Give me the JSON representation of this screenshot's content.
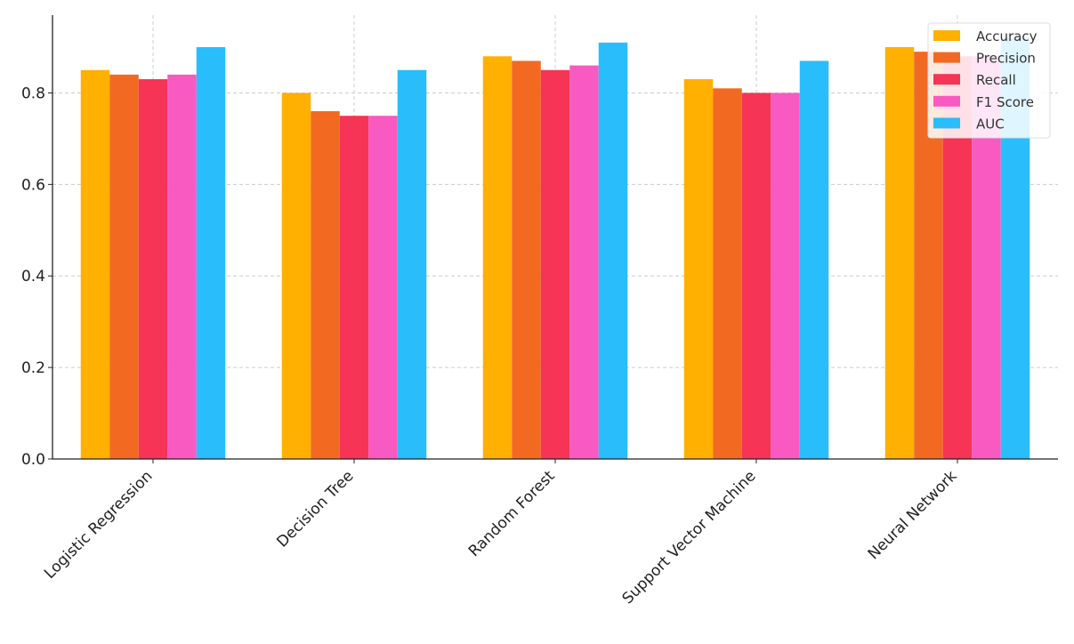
{
  "chart_data": {
    "type": "bar",
    "title": "",
    "xlabel": "",
    "ylabel": "",
    "ylim": [
      0,
      0.97
    ],
    "yticks": [
      0.0,
      0.2,
      0.4,
      0.6,
      0.8
    ],
    "ytick_labels": [
      "0.0",
      "0.2",
      "0.4",
      "0.6",
      "0.8"
    ],
    "grid": true,
    "legend_position": "top-right",
    "categories": [
      "Logistic Regression",
      "Decision Tree",
      "Random Forest",
      "Support Vector Machine",
      "Neural Network"
    ],
    "series": [
      {
        "name": "Accuracy",
        "color": "#FFB000",
        "values": [
          0.85,
          0.8,
          0.88,
          0.83,
          0.9
        ]
      },
      {
        "name": "Precision",
        "color": "#F26A22",
        "values": [
          0.84,
          0.76,
          0.87,
          0.81,
          0.89
        ]
      },
      {
        "name": "Recall",
        "color": "#F53456",
        "values": [
          0.83,
          0.75,
          0.85,
          0.8,
          0.88
        ]
      },
      {
        "name": "F1 Score",
        "color": "#F85AC2",
        "values": [
          0.84,
          0.75,
          0.86,
          0.8,
          0.88
        ]
      },
      {
        "name": "AUC",
        "color": "#29BDFB",
        "values": [
          0.9,
          0.85,
          0.91,
          0.87,
          0.92
        ]
      }
    ]
  }
}
